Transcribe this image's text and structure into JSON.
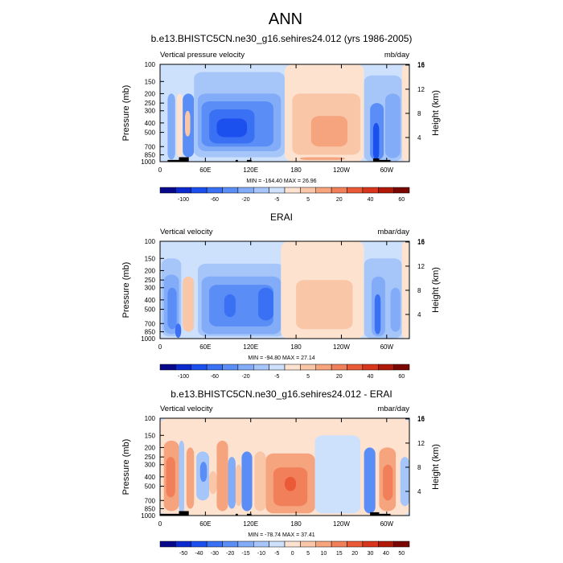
{
  "figure": {
    "title": "ANN",
    "colors": {
      "frame": "#000000",
      "land_mask": "#000000"
    }
  },
  "chart_data": [
    {
      "type": "heatmap",
      "title": "b.e13.BHISTC5CN.ne30_g16.sehires24.012 (yrs 1986-2005)",
      "variable_label": "Vertical pressure velocity",
      "units": "mb/day",
      "ylabel": "Pressure (mb)",
      "ylabel_right": "Height (km)",
      "x_ticks": [
        "0",
        "60E",
        "120E",
        "180",
        "120W",
        "60W"
      ],
      "x_tick_lons": [
        0,
        60,
        120,
        180,
        240,
        300
      ],
      "xlim": [
        0,
        330
      ],
      "y_ticks": [
        "100",
        "150",
        "200",
        "250",
        "300",
        "400",
        "500",
        "700",
        "850",
        "1000"
      ],
      "y_tick_values": [
        100,
        150,
        200,
        250,
        300,
        400,
        500,
        700,
        850,
        1000
      ],
      "ylim": [
        100,
        1000
      ],
      "height_ticks": [
        "4",
        "8",
        "12",
        "16"
      ],
      "height_values": [
        4,
        8,
        12,
        16
      ],
      "stats_text": "MIN = -164.40  MAX = 26.96",
      "min": -164.4,
      "max": 26.96,
      "colorbar": {
        "labels": [
          "-100",
          "-60",
          "-20",
          "-5",
          "5",
          "20",
          "40",
          "60"
        ],
        "colors": [
          "#08088a",
          "#0a2ad0",
          "#1c50ee",
          "#3a70f3",
          "#5a8ef6",
          "#82acf8",
          "#a6c6fa",
          "#cde0fc",
          "#fde2d0",
          "#f9c6a8",
          "#f5a47e",
          "#f1805a",
          "#eb5a36",
          "#d8361c",
          "#b01808",
          "#7a0600"
        ]
      },
      "field_regions": [
        {
          "lon": [
            0,
            22
          ],
          "p": [
            100,
            1000
          ],
          "level": -1
        },
        {
          "lon": [
            10,
            20
          ],
          "p": [
            200,
            950
          ],
          "level": -3
        },
        {
          "lon": [
            22,
            30
          ],
          "p": [
            200,
            900
          ],
          "level": 1
        },
        {
          "lon": [
            30,
            45
          ],
          "p": [
            200,
            900
          ],
          "level": -4
        },
        {
          "lon": [
            33,
            40
          ],
          "p": [
            300,
            550
          ],
          "level": 2
        },
        {
          "lon": [
            45,
            170
          ],
          "p": [
            100,
            1000
          ],
          "level": -1
        },
        {
          "lon": [
            45,
            165
          ],
          "p": [
            120,
            900
          ],
          "level": -2
        },
        {
          "lon": [
            50,
            160
          ],
          "p": [
            200,
            780
          ],
          "level": -3
        },
        {
          "lon": [
            55,
            150
          ],
          "p": [
            240,
            700
          ],
          "level": -4
        },
        {
          "lon": [
            65,
            125
          ],
          "p": [
            290,
            650
          ],
          "level": -5
        },
        {
          "lon": [
            75,
            115
          ],
          "p": [
            360,
            560
          ],
          "level": -6
        },
        {
          "lon": [
            165,
            270
          ],
          "p": [
            100,
            1000
          ],
          "level": 1
        },
        {
          "lon": [
            175,
            265
          ],
          "p": [
            200,
            850
          ],
          "level": 2
        },
        {
          "lon": [
            200,
            248
          ],
          "p": [
            340,
            700
          ],
          "level": 3
        },
        {
          "lon": [
            185,
            245
          ],
          "p": [
            900,
            960
          ],
          "level": 3
        },
        {
          "lon": [
            270,
            320
          ],
          "p": [
            130,
            1000
          ],
          "level": -2
        },
        {
          "lon": [
            278,
            296
          ],
          "p": [
            250,
            960
          ],
          "level": -4
        },
        {
          "lon": [
            282,
            290
          ],
          "p": [
            400,
            950
          ],
          "level": -6
        },
        {
          "lon": [
            298,
            318
          ],
          "p": [
            200,
            920
          ],
          "level": -3
        },
        {
          "lon": [
            320,
            330
          ],
          "p": [
            100,
            1000
          ],
          "level": 1
        }
      ],
      "land_mask": [
        {
          "lon": [
            10,
            25
          ],
          "p": [
            960,
            1000
          ]
        },
        {
          "lon": [
            25,
            38
          ],
          "p": [
            900,
            1000
          ]
        },
        {
          "lon": [
            100,
            103
          ],
          "p": [
            960,
            1000
          ]
        },
        {
          "lon": [
            115,
            121
          ],
          "p": [
            960,
            1000
          ]
        },
        {
          "lon": [
            282,
            290
          ],
          "p": [
            925,
            1000
          ]
        },
        {
          "lon": [
            290,
            305
          ],
          "p": [
            960,
            1000
          ]
        }
      ]
    },
    {
      "type": "heatmap",
      "title": "ERAI",
      "variable_label": "Vertical velocity",
      "units": "mbar/day",
      "ylabel": "Pressure (mb)",
      "ylabel_right": "Height (km)",
      "x_ticks": [
        "0",
        "60E",
        "120E",
        "180",
        "120W",
        "60W"
      ],
      "x_tick_lons": [
        0,
        60,
        120,
        180,
        240,
        300
      ],
      "xlim": [
        0,
        330
      ],
      "y_ticks": [
        "100",
        "150",
        "200",
        "250",
        "300",
        "400",
        "500",
        "700",
        "850",
        "1000"
      ],
      "y_tick_values": [
        100,
        150,
        200,
        250,
        300,
        400,
        500,
        700,
        850,
        1000
      ],
      "ylim": [
        100,
        1000
      ],
      "height_ticks": [
        "4",
        "8",
        "12",
        "16"
      ],
      "height_values": [
        4,
        8,
        12,
        16
      ],
      "stats_text": "MIN = -94.80  MAX = 27.14",
      "min": -94.8,
      "max": 27.14,
      "colorbar": {
        "labels": [
          "-100",
          "-60",
          "-20",
          "-5",
          "5",
          "20",
          "40",
          "60"
        ],
        "colors": [
          "#08088a",
          "#0a2ad0",
          "#1c50ee",
          "#3a70f3",
          "#5a8ef6",
          "#82acf8",
          "#a6c6fa",
          "#cde0fc",
          "#fde2d0",
          "#f9c6a8",
          "#f5a47e",
          "#f1805a",
          "#eb5a36",
          "#d8361c",
          "#b01808",
          "#7a0600"
        ]
      },
      "field_regions": [
        {
          "lon": [
            0,
            30
          ],
          "p": [
            100,
            1000
          ],
          "level": -1
        },
        {
          "lon": [
            2,
            28
          ],
          "p": [
            150,
            950
          ],
          "level": -2
        },
        {
          "lon": [
            5,
            25
          ],
          "p": [
            220,
            900
          ],
          "level": -3
        },
        {
          "lon": [
            10,
            22
          ],
          "p": [
            300,
            800
          ],
          "level": -4
        },
        {
          "lon": [
            20,
            28
          ],
          "p": [
            700,
            980
          ],
          "level": -5
        },
        {
          "lon": [
            30,
            45
          ],
          "p": [
            230,
            850
          ],
          "level": 2
        },
        {
          "lon": [
            45,
            170
          ],
          "p": [
            100,
            1000
          ],
          "level": -1
        },
        {
          "lon": [
            50,
            165
          ],
          "p": [
            170,
            950
          ],
          "level": -2
        },
        {
          "lon": [
            55,
            160
          ],
          "p": [
            230,
            900
          ],
          "level": -3
        },
        {
          "lon": [
            65,
            150
          ],
          "p": [
            280,
            750
          ],
          "level": -4
        },
        {
          "lon": [
            85,
            100
          ],
          "p": [
            350,
            600
          ],
          "level": -5
        },
        {
          "lon": [
            130,
            150
          ],
          "p": [
            300,
            650
          ],
          "level": -5
        },
        {
          "lon": [
            160,
            270
          ],
          "p": [
            100,
            1000
          ],
          "level": 1
        },
        {
          "lon": [
            180,
            255
          ],
          "p": [
            250,
            800
          ],
          "level": 2
        },
        {
          "lon": [
            270,
            320
          ],
          "p": [
            150,
            1000
          ],
          "level": -2
        },
        {
          "lon": [
            280,
            298
          ],
          "p": [
            230,
            950
          ],
          "level": -3
        },
        {
          "lon": [
            284,
            292
          ],
          "p": [
            350,
            900
          ],
          "level": -5
        },
        {
          "lon": [
            305,
            318
          ],
          "p": [
            300,
            850
          ],
          "level": -3
        },
        {
          "lon": [
            320,
            330
          ],
          "p": [
            100,
            1000
          ],
          "level": 1
        }
      ],
      "land_mask": []
    },
    {
      "type": "heatmap",
      "title": "b.e13.BHISTC5CN.ne30_g16.sehires24.012 - ERAI",
      "variable_label": "Vertical velocity",
      "units": "mbar/day",
      "ylabel": "Pressure (mb)",
      "ylabel_right": "Height (km)",
      "x_ticks": [
        "0",
        "60E",
        "120E",
        "180",
        "120W",
        "60W"
      ],
      "x_tick_lons": [
        0,
        60,
        120,
        180,
        240,
        300
      ],
      "xlim": [
        0,
        330
      ],
      "y_ticks": [
        "100",
        "150",
        "200",
        "250",
        "300",
        "400",
        "500",
        "700",
        "850",
        "1000"
      ],
      "y_tick_values": [
        100,
        150,
        200,
        250,
        300,
        400,
        500,
        700,
        850,
        1000
      ],
      "ylim": [
        100,
        1000
      ],
      "height_ticks": [
        "4",
        "8",
        "12",
        "16"
      ],
      "height_values": [
        4,
        8,
        12,
        16
      ],
      "stats_text": "MIN = -78.74  MAX = 37.41",
      "min": -78.74,
      "max": 37.41,
      "colorbar": {
        "labels": [
          "-50",
          "-40",
          "-30",
          "-20",
          "-15",
          "-10",
          "-5",
          "0",
          "5",
          "10",
          "15",
          "20",
          "30",
          "40",
          "50"
        ],
        "colors": [
          "#08088a",
          "#0a2ad0",
          "#1c50ee",
          "#3a70f3",
          "#5a8ef6",
          "#82acf8",
          "#a6c6fa",
          "#cde0fc",
          "#fde2d0",
          "#f9c6a8",
          "#f5a47e",
          "#f1805a",
          "#eb5a36",
          "#d8361c",
          "#b01808",
          "#7a0600"
        ]
      },
      "field_regions": [
        {
          "lon": [
            0,
            330
          ],
          "p": [
            100,
            1000
          ],
          "level": 1
        },
        {
          "lon": [
            5,
            25
          ],
          "p": [
            170,
            900
          ],
          "level": 3
        },
        {
          "lon": [
            8,
            20
          ],
          "p": [
            250,
            650
          ],
          "level": 4
        },
        {
          "lon": [
            25,
            32
          ],
          "p": [
            170,
            950
          ],
          "level": -2
        },
        {
          "lon": [
            35,
            45
          ],
          "p": [
            200,
            850
          ],
          "level": 3
        },
        {
          "lon": [
            48,
            65
          ],
          "p": [
            220,
            700
          ],
          "level": -2
        },
        {
          "lon": [
            53,
            62
          ],
          "p": [
            280,
            450
          ],
          "level": -4
        },
        {
          "lon": [
            65,
            75
          ],
          "p": [
            350,
            600
          ],
          "level": 2
        },
        {
          "lon": [
            75,
            90
          ],
          "p": [
            170,
            900
          ],
          "level": 3
        },
        {
          "lon": [
            90,
            100
          ],
          "p": [
            250,
            850
          ],
          "level": -3
        },
        {
          "lon": [
            100,
            108
          ],
          "p": [
            300,
            800
          ],
          "level": 2
        },
        {
          "lon": [
            108,
            122
          ],
          "p": [
            220,
            900
          ],
          "level": -4
        },
        {
          "lon": [
            125,
            140
          ],
          "p": [
            220,
            900
          ],
          "level": 2
        },
        {
          "lon": [
            140,
            205
          ],
          "p": [
            230,
            950
          ],
          "level": 3
        },
        {
          "lon": [
            150,
            195
          ],
          "p": [
            320,
            800
          ],
          "level": 4
        },
        {
          "lon": [
            165,
            180
          ],
          "p": [
            400,
            560
          ],
          "level": 5
        },
        {
          "lon": [
            205,
            265
          ],
          "p": [
            150,
            950
          ],
          "level": -1
        },
        {
          "lon": [
            270,
            285
          ],
          "p": [
            200,
            950
          ],
          "level": -4
        },
        {
          "lon": [
            290,
            312
          ],
          "p": [
            200,
            900
          ],
          "level": 3
        },
        {
          "lon": [
            295,
            308
          ],
          "p": [
            300,
            700
          ],
          "level": 4
        },
        {
          "lon": [
            318,
            330
          ],
          "p": [
            250,
            800
          ],
          "level": -2
        }
      ],
      "land_mask": [
        {
          "lon": [
            0,
            25
          ],
          "p": [
            960,
            1000
          ]
        },
        {
          "lon": [
            25,
            38
          ],
          "p": [
            900,
            1000
          ]
        },
        {
          "lon": [
            100,
            103
          ],
          "p": [
            960,
            1000
          ]
        },
        {
          "lon": [
            115,
            121
          ],
          "p": [
            960,
            1000
          ]
        },
        {
          "lon": [
            278,
            290
          ],
          "p": [
            925,
            1000
          ]
        },
        {
          "lon": [
            290,
            305
          ],
          "p": [
            960,
            1000
          ]
        }
      ]
    }
  ]
}
